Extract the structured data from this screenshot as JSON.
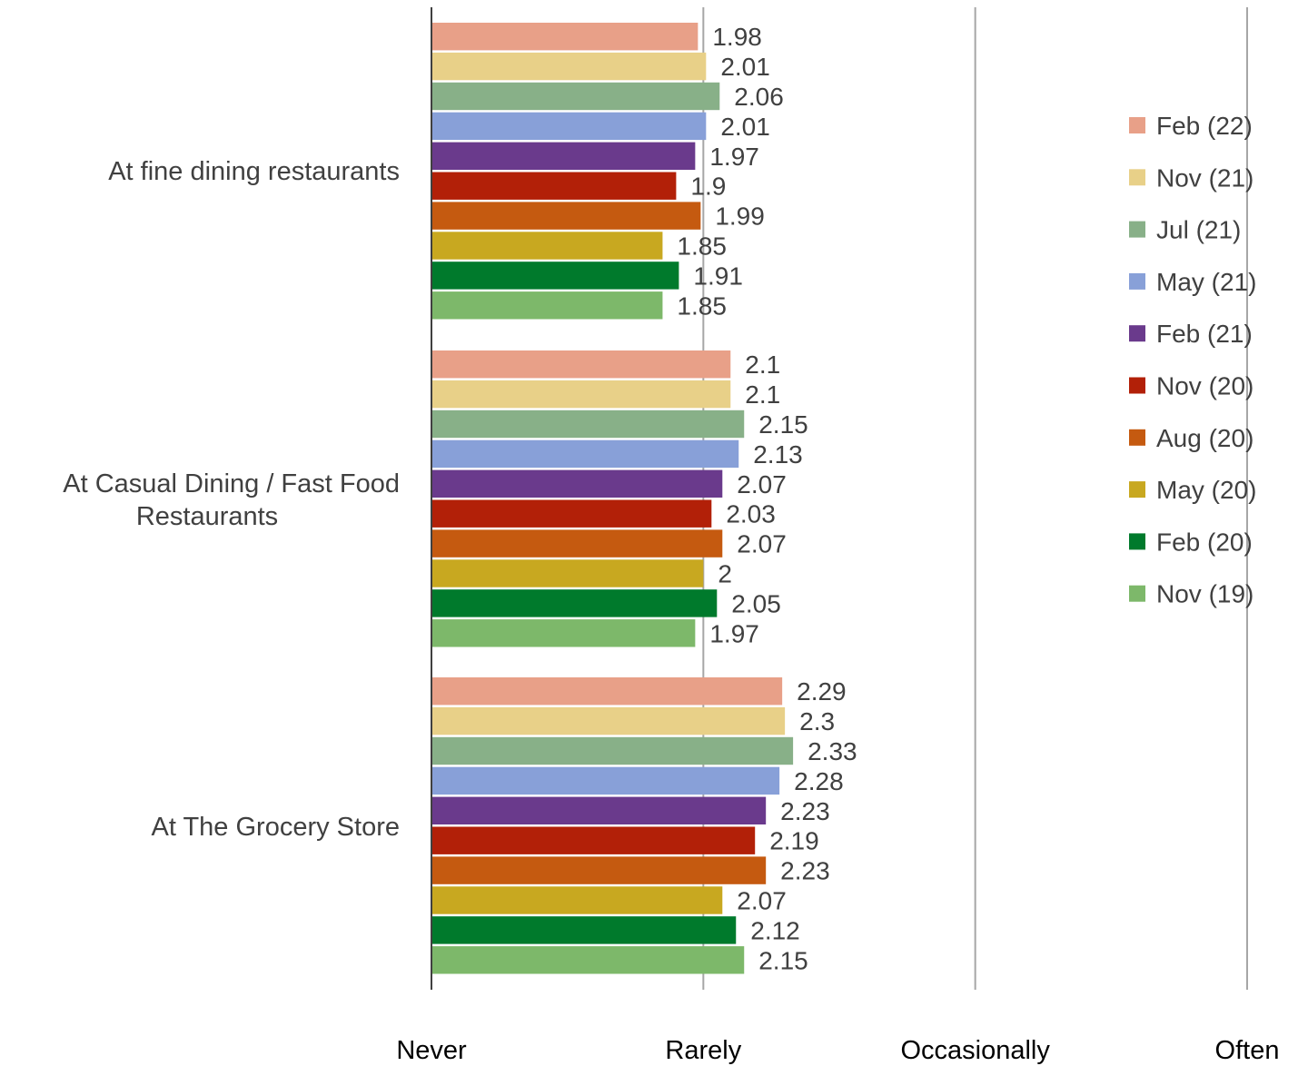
{
  "chart_data": {
    "type": "bar",
    "orientation": "horizontal",
    "title": "",
    "xlabel": "",
    "ylabel": "",
    "xlim": [
      1,
      4
    ],
    "x_ticks": [
      {
        "value": 1,
        "label": "Never"
      },
      {
        "value": 2,
        "label": "Rarely"
      },
      {
        "value": 3,
        "label": "Occasionally"
      },
      {
        "value": 4,
        "label": "Often"
      }
    ],
    "grid": "vertical",
    "legend_position": "right",
    "categories": [
      [
        "At fine dining restaurants"
      ],
      [
        "At Casual Dining / Fast Food",
        "Restaurants"
      ],
      [
        "At The Grocery Store"
      ]
    ],
    "series": [
      {
        "name": "Feb (22)",
        "color": "#E8A088",
        "values": [
          1.98,
          2.1,
          2.29
        ],
        "labels": [
          "1.98",
          "2.1",
          "2.29"
        ]
      },
      {
        "name": "Nov (21)",
        "color": "#E8D088",
        "values": [
          2.01,
          2.1,
          2.3
        ],
        "labels": [
          "2.01",
          "2.1",
          "2.3"
        ]
      },
      {
        "name": "Jul (21)",
        "color": "#88B088",
        "values": [
          2.06,
          2.15,
          2.33
        ],
        "labels": [
          "2.06",
          "2.15",
          "2.33"
        ]
      },
      {
        "name": "May (21)",
        "color": "#88A0D8",
        "values": [
          2.01,
          2.13,
          2.28
        ],
        "labels": [
          "2.01",
          "2.13",
          "2.28"
        ]
      },
      {
        "name": "Feb (21)",
        "color": "#6A3A8C",
        "values": [
          1.97,
          2.07,
          2.23
        ],
        "labels": [
          "1.97",
          "2.07",
          "2.23"
        ]
      },
      {
        "name": "Nov (20)",
        "color": "#B22008",
        "values": [
          1.9,
          2.03,
          2.19
        ],
        "labels": [
          "1.9",
          "2.03",
          "2.19"
        ]
      },
      {
        "name": "Aug (20)",
        "color": "#C55A10",
        "values": [
          1.99,
          2.07,
          2.23
        ],
        "labels": [
          "1.99",
          "2.07",
          "2.23"
        ]
      },
      {
        "name": "May (20)",
        "color": "#C8A820",
        "values": [
          1.85,
          2.0,
          2.07
        ],
        "labels": [
          "1.85",
          "2",
          "2.07"
        ]
      },
      {
        "name": "Feb (20)",
        "color": "#007A2C",
        "values": [
          1.91,
          2.05,
          2.12
        ],
        "labels": [
          "1.91",
          "2.05",
          "2.12"
        ]
      },
      {
        "name": "Nov (19)",
        "color": "#7DB86A",
        "values": [
          1.85,
          1.97,
          2.15
        ],
        "labels": [
          "1.85",
          "1.97",
          "2.15"
        ]
      }
    ]
  }
}
